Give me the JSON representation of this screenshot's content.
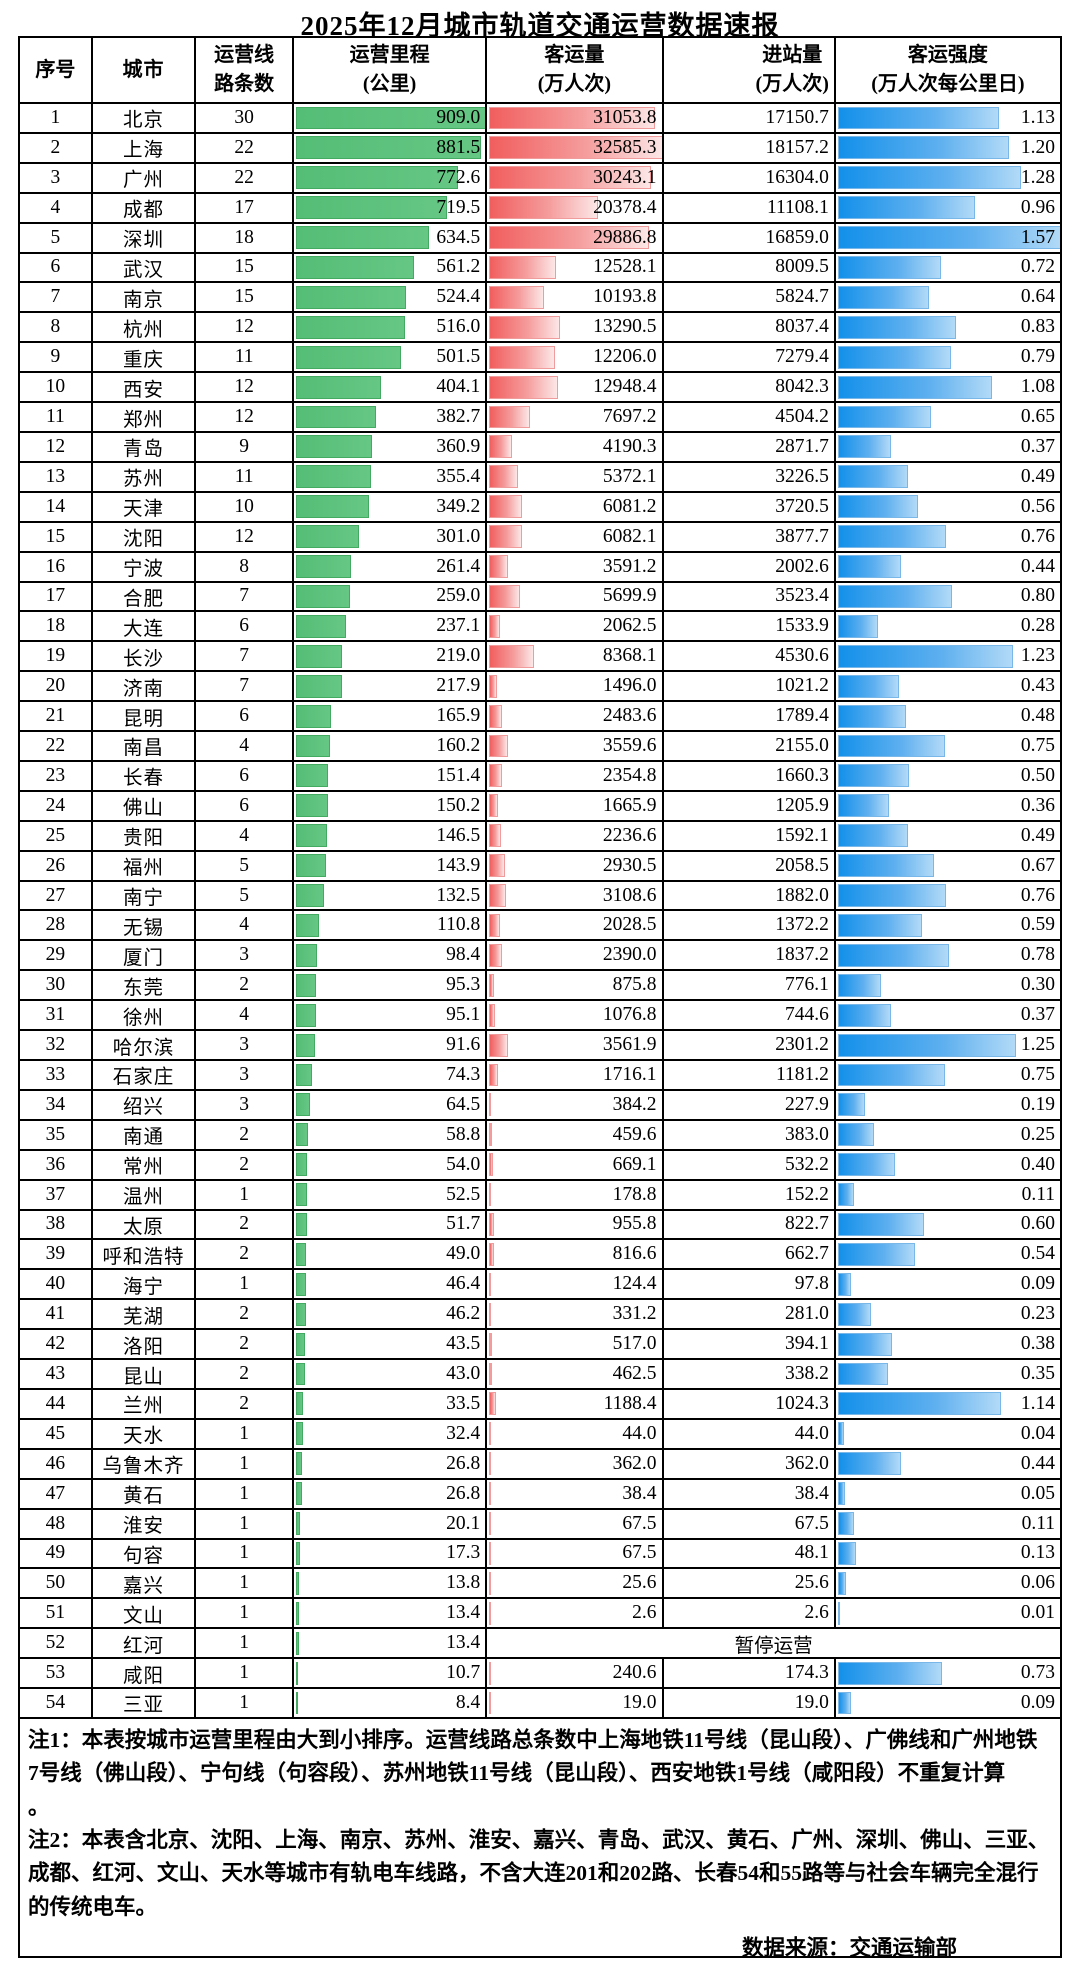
{
  "title": "2025年12月城市轨道交通运营数据速报",
  "header": {
    "no": "序号",
    "city": "城市",
    "lines": "运营线\n路条数",
    "mileage": "运营里程\n(公里)",
    "passengers": "客运量\n(万人次)",
    "entries": "进站量\n(万人次)",
    "intensity": "客运强度\n(万人次每公里日)"
  },
  "colors": {
    "mileage_bar": "#54BD76",
    "passengers_bar": "#F15E5E",
    "intensity_bar": "#1390EA"
  },
  "chart_data": {
    "type": "table",
    "title": "2025年12月城市轨道交通运营数据速报",
    "columns": [
      "序号",
      "城市",
      "运营线路条数",
      "运营里程(公里)",
      "客运量(万人次)",
      "进站量(万人次)",
      "客运强度(万人次每公里日)"
    ],
    "bar_maxes": {
      "mileage": 909.0,
      "passengers": 32585.3,
      "intensity": 1.57
    },
    "suspended_label": "暂停运营",
    "rows": [
      {
        "no": "1",
        "city": "北京",
        "lines": "30",
        "mileage": "909.0",
        "passengers": "31053.8",
        "entries": "17150.7",
        "intensity": "1.13"
      },
      {
        "no": "2",
        "city": "上海",
        "lines": "22",
        "mileage": "881.5",
        "passengers": "32585.3",
        "entries": "18157.2",
        "intensity": "1.20"
      },
      {
        "no": "3",
        "city": "广州",
        "lines": "22",
        "mileage": "772.6",
        "passengers": "30243.1",
        "entries": "16304.0",
        "intensity": "1.28"
      },
      {
        "no": "4",
        "city": "成都",
        "lines": "17",
        "mileage": "719.5",
        "passengers": "20378.4",
        "entries": "11108.1",
        "intensity": "0.96"
      },
      {
        "no": "5",
        "city": "深圳",
        "lines": "18",
        "mileage": "634.5",
        "passengers": "29886.8",
        "entries": "16859.0",
        "intensity": "1.57"
      },
      {
        "no": "6",
        "city": "武汉",
        "lines": "15",
        "mileage": "561.2",
        "passengers": "12528.1",
        "entries": "8009.5",
        "intensity": "0.72"
      },
      {
        "no": "7",
        "city": "南京",
        "lines": "15",
        "mileage": "524.4",
        "passengers": "10193.8",
        "entries": "5824.7",
        "intensity": "0.64"
      },
      {
        "no": "8",
        "city": "杭州",
        "lines": "12",
        "mileage": "516.0",
        "passengers": "13290.5",
        "entries": "8037.4",
        "intensity": "0.83"
      },
      {
        "no": "9",
        "city": "重庆",
        "lines": "11",
        "mileage": "501.5",
        "passengers": "12206.0",
        "entries": "7279.4",
        "intensity": "0.79"
      },
      {
        "no": "10",
        "city": "西安",
        "lines": "12",
        "mileage": "404.1",
        "passengers": "12948.4",
        "entries": "8042.3",
        "intensity": "1.08"
      },
      {
        "no": "11",
        "city": "郑州",
        "lines": "12",
        "mileage": "382.7",
        "passengers": "7697.2",
        "entries": "4504.2",
        "intensity": "0.65"
      },
      {
        "no": "12",
        "city": "青岛",
        "lines": "9",
        "mileage": "360.9",
        "passengers": "4190.3",
        "entries": "2871.7",
        "intensity": "0.37"
      },
      {
        "no": "13",
        "city": "苏州",
        "lines": "11",
        "mileage": "355.4",
        "passengers": "5372.1",
        "entries": "3226.5",
        "intensity": "0.49"
      },
      {
        "no": "14",
        "city": "天津",
        "lines": "10",
        "mileage": "349.2",
        "passengers": "6081.2",
        "entries": "3720.5",
        "intensity": "0.56"
      },
      {
        "no": "15",
        "city": "沈阳",
        "lines": "12",
        "mileage": "301.0",
        "passengers": "6082.1",
        "entries": "3877.7",
        "intensity": "0.76"
      },
      {
        "no": "16",
        "city": "宁波",
        "lines": "8",
        "mileage": "261.4",
        "passengers": "3591.2",
        "entries": "2002.6",
        "intensity": "0.44"
      },
      {
        "no": "17",
        "city": "合肥",
        "lines": "7",
        "mileage": "259.0",
        "passengers": "5699.9",
        "entries": "3523.4",
        "intensity": "0.80"
      },
      {
        "no": "18",
        "city": "大连",
        "lines": "6",
        "mileage": "237.1",
        "passengers": "2062.5",
        "entries": "1533.9",
        "intensity": "0.28"
      },
      {
        "no": "19",
        "city": "长沙",
        "lines": "7",
        "mileage": "219.0",
        "passengers": "8368.1",
        "entries": "4530.6",
        "intensity": "1.23"
      },
      {
        "no": "20",
        "city": "济南",
        "lines": "7",
        "mileage": "217.9",
        "passengers": "1496.0",
        "entries": "1021.2",
        "intensity": "0.43"
      },
      {
        "no": "21",
        "city": "昆明",
        "lines": "6",
        "mileage": "165.9",
        "passengers": "2483.6",
        "entries": "1789.4",
        "intensity": "0.48"
      },
      {
        "no": "22",
        "city": "南昌",
        "lines": "4",
        "mileage": "160.2",
        "passengers": "3559.6",
        "entries": "2155.0",
        "intensity": "0.75"
      },
      {
        "no": "23",
        "city": "长春",
        "lines": "6",
        "mileage": "151.4",
        "passengers": "2354.8",
        "entries": "1660.3",
        "intensity": "0.50"
      },
      {
        "no": "24",
        "city": "佛山",
        "lines": "6",
        "mileage": "150.2",
        "passengers": "1665.9",
        "entries": "1205.9",
        "intensity": "0.36"
      },
      {
        "no": "25",
        "city": "贵阳",
        "lines": "4",
        "mileage": "146.5",
        "passengers": "2236.6",
        "entries": "1592.1",
        "intensity": "0.49"
      },
      {
        "no": "26",
        "city": "福州",
        "lines": "5",
        "mileage": "143.9",
        "passengers": "2930.5",
        "entries": "2058.5",
        "intensity": "0.67"
      },
      {
        "no": "27",
        "city": "南宁",
        "lines": "5",
        "mileage": "132.5",
        "passengers": "3108.6",
        "entries": "1882.0",
        "intensity": "0.76"
      },
      {
        "no": "28",
        "city": "无锡",
        "lines": "4",
        "mileage": "110.8",
        "passengers": "2028.5",
        "entries": "1372.2",
        "intensity": "0.59"
      },
      {
        "no": "29",
        "city": "厦门",
        "lines": "3",
        "mileage": "98.4",
        "passengers": "2390.0",
        "entries": "1837.2",
        "intensity": "0.78"
      },
      {
        "no": "30",
        "city": "东莞",
        "lines": "2",
        "mileage": "95.3",
        "passengers": "875.8",
        "entries": "776.1",
        "intensity": "0.30"
      },
      {
        "no": "31",
        "city": "徐州",
        "lines": "4",
        "mileage": "95.1",
        "passengers": "1076.8",
        "entries": "744.6",
        "intensity": "0.37"
      },
      {
        "no": "32",
        "city": "哈尔滨",
        "lines": "3",
        "mileage": "91.6",
        "passengers": "3561.9",
        "entries": "2301.2",
        "intensity": "1.25"
      },
      {
        "no": "33",
        "city": "石家庄",
        "lines": "3",
        "mileage": "74.3",
        "passengers": "1716.1",
        "entries": "1181.2",
        "intensity": "0.75"
      },
      {
        "no": "34",
        "city": "绍兴",
        "lines": "3",
        "mileage": "64.5",
        "passengers": "384.2",
        "entries": "227.9",
        "intensity": "0.19"
      },
      {
        "no": "35",
        "city": "南通",
        "lines": "2",
        "mileage": "58.8",
        "passengers": "459.6",
        "entries": "383.0",
        "intensity": "0.25"
      },
      {
        "no": "36",
        "city": "常州",
        "lines": "2",
        "mileage": "54.0",
        "passengers": "669.1",
        "entries": "532.2",
        "intensity": "0.40"
      },
      {
        "no": "37",
        "city": "温州",
        "lines": "1",
        "mileage": "52.5",
        "passengers": "178.8",
        "entries": "152.2",
        "intensity": "0.11"
      },
      {
        "no": "38",
        "city": "太原",
        "lines": "2",
        "mileage": "51.7",
        "passengers": "955.8",
        "entries": "822.7",
        "intensity": "0.60"
      },
      {
        "no": "39",
        "city": "呼和浩特",
        "lines": "2",
        "mileage": "49.0",
        "passengers": "816.6",
        "entries": "662.7",
        "intensity": "0.54"
      },
      {
        "no": "40",
        "city": "海宁",
        "lines": "1",
        "mileage": "46.4",
        "passengers": "124.4",
        "entries": "97.8",
        "intensity": "0.09"
      },
      {
        "no": "41",
        "city": "芜湖",
        "lines": "2",
        "mileage": "46.2",
        "passengers": "331.2",
        "entries": "281.0",
        "intensity": "0.23"
      },
      {
        "no": "42",
        "city": "洛阳",
        "lines": "2",
        "mileage": "43.5",
        "passengers": "517.0",
        "entries": "394.1",
        "intensity": "0.38"
      },
      {
        "no": "43",
        "city": "昆山",
        "lines": "2",
        "mileage": "43.0",
        "passengers": "462.5",
        "entries": "338.2",
        "intensity": "0.35"
      },
      {
        "no": "44",
        "city": "兰州",
        "lines": "2",
        "mileage": "33.5",
        "passengers": "1188.4",
        "entries": "1024.3",
        "intensity": "1.14"
      },
      {
        "no": "45",
        "city": "天水",
        "lines": "1",
        "mileage": "32.4",
        "passengers": "44.0",
        "entries": "44.0",
        "intensity": "0.04"
      },
      {
        "no": "46",
        "city": "乌鲁木齐",
        "lines": "1",
        "mileage": "26.8",
        "passengers": "362.0",
        "entries": "362.0",
        "intensity": "0.44"
      },
      {
        "no": "47",
        "city": "黄石",
        "lines": "1",
        "mileage": "26.8",
        "passengers": "38.4",
        "entries": "38.4",
        "intensity": "0.05"
      },
      {
        "no": "48",
        "city": "淮安",
        "lines": "1",
        "mileage": "20.1",
        "passengers": "67.5",
        "entries": "67.5",
        "intensity": "0.11"
      },
      {
        "no": "49",
        "city": "句容",
        "lines": "1",
        "mileage": "17.3",
        "passengers": "67.5",
        "entries": "48.1",
        "intensity": "0.13"
      },
      {
        "no": "50",
        "city": "嘉兴",
        "lines": "1",
        "mileage": "13.8",
        "passengers": "25.6",
        "entries": "25.6",
        "intensity": "0.06"
      },
      {
        "no": "51",
        "city": "文山",
        "lines": "1",
        "mileage": "13.4",
        "passengers": "2.6",
        "entries": "2.6",
        "intensity": "0.01"
      },
      {
        "no": "52",
        "city": "红河",
        "lines": "1",
        "mileage": "13.4",
        "suspended": true
      },
      {
        "no": "53",
        "city": "咸阳",
        "lines": "1",
        "mileage": "10.7",
        "passengers": "240.6",
        "entries": "174.3",
        "intensity": "0.73"
      },
      {
        "no": "54",
        "city": "三亚",
        "lines": "1",
        "mileage": "8.4",
        "passengers": "19.0",
        "entries": "19.0",
        "intensity": "0.09"
      }
    ]
  },
  "notes": {
    "note1": "注1：本表按城市运营里程由大到小排序。运营线路总条数中上海地铁11号线（昆山段）、广佛线和广州地铁\n7号线（佛山段）、宁句线（句容段）、苏州地铁11号线（昆山段）、西安地铁1号线（咸阳段）不重复计算\n。",
    "note2": "注2：本表含北京、沈阳、上海、南京、苏州、淮安、嘉兴、青岛、武汉、黄石、广州、深圳、佛山、三亚、\n成都、红河、文山、天水等城市有轨电车线路，不含大连201和202路、长春54和55路等与社会车辆完全混行\n的传统电车。",
    "source": "数据来源：交通运输部"
  }
}
